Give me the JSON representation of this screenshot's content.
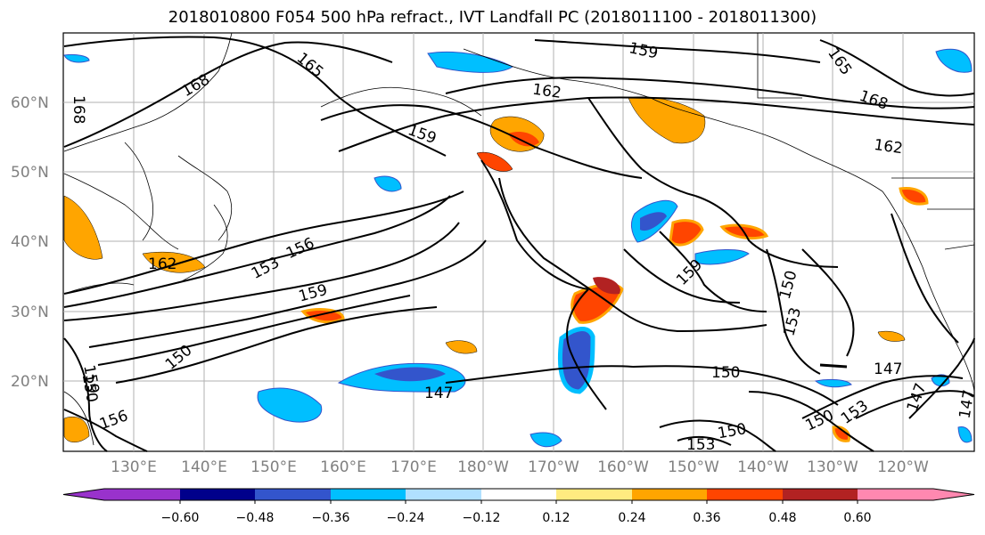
{
  "title": "2018010800 F054 500 hPa refract., IVT Landfall PC (2018011100 - 2018011300)",
  "lat_labels": [
    "60°N",
    "50°N",
    "40°N",
    "30°N",
    "20°N"
  ],
  "lon_labels": [
    "130°E",
    "140°E",
    "150°E",
    "160°E",
    "170°E",
    "180°W",
    "170°W",
    "160°W",
    "150°W",
    "140°W",
    "130°W",
    "120°W"
  ],
  "contour_labels": [
    "168",
    "165",
    "168",
    "159",
    "162",
    "159",
    "165",
    "168",
    "162",
    "156",
    "153",
    "162",
    "159",
    "159",
    "150",
    "153",
    "150",
    "159",
    "150",
    "147",
    "150",
    "150",
    "153",
    "147",
    "147",
    "147",
    "150",
    "153",
    "156"
  ],
  "colorbar": {
    "ticks": [
      "−0.60",
      "−0.48",
      "−0.36",
      "−0.24",
      "−0.12",
      "0.12",
      "0.24",
      "0.36",
      "0.48",
      "0.60"
    ],
    "colors": [
      "#9932cc",
      "#00008b",
      "#3355cc",
      "#00bfff",
      "#b0e0ff",
      "#ffffff",
      "#ffeb80",
      "#ffa500",
      "#ff4500",
      "#b22222",
      "#ff88b0"
    ]
  }
}
